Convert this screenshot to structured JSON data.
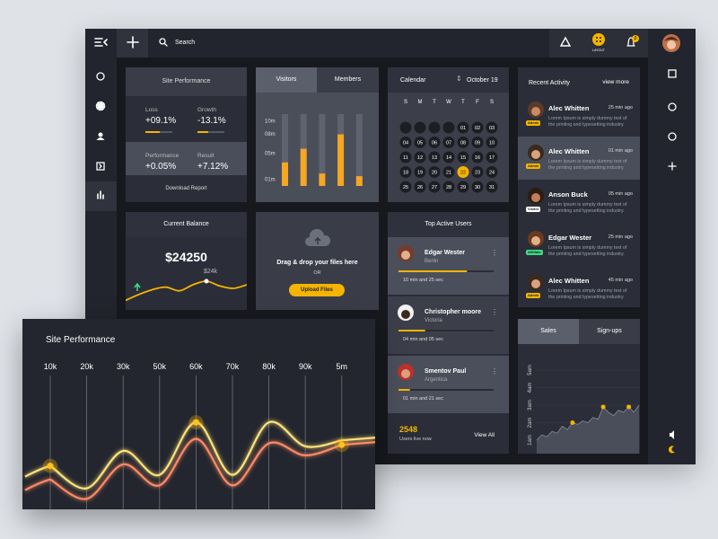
{
  "topbar": {
    "search": "Search",
    "layout_label": "LAYOUT",
    "notification_count": "2"
  },
  "site_performance_card": {
    "title": "Site Performance",
    "stats": [
      {
        "label": "Loss",
        "value": "+09.1%"
      },
      {
        "label": "Growth",
        "value": "-13.1%"
      },
      {
        "label": "Performance",
        "value": "+0.05%"
      },
      {
        "label": "Result",
        "value": "+7.12%"
      }
    ],
    "action": "Download Report"
  },
  "visitors_card": {
    "tabs": [
      "Visitors",
      "Members"
    ],
    "chart_data": {
      "type": "bar",
      "values": [
        3.6,
        5.7,
        1.9,
        7.9,
        1.5
      ],
      "color": "#f5a623",
      "ylim": [
        0,
        11
      ],
      "yticks": [
        {
          "value": 1,
          "label": "01m"
        },
        {
          "value": 5,
          "label": "05m"
        },
        {
          "value": 8,
          "label": "08m"
        },
        {
          "value": 10,
          "label": "10m"
        }
      ]
    }
  },
  "calendar": {
    "title": "Calendar",
    "month": "October 19",
    "weekdays": [
      "S",
      "M",
      "T",
      "W",
      "T",
      "F",
      "S"
    ],
    "days": [
      "01",
      "02",
      "03",
      "04",
      "05",
      "06",
      "07",
      "08",
      "09",
      "10",
      "11",
      "12",
      "13",
      "14",
      "15",
      "16",
      "17",
      "18",
      "19",
      "20",
      "21",
      "22",
      "23",
      "24",
      "25",
      "26",
      "27",
      "28",
      "29",
      "30",
      "31"
    ],
    "selected": "22"
  },
  "current_balance": {
    "title": "Current Balance",
    "amount": "$24250",
    "peak_label": "$24k",
    "chart_data": {
      "type": "line",
      "values": [
        8,
        13,
        17,
        19,
        16,
        21,
        24,
        20,
        18,
        21
      ],
      "color": "#f5b400",
      "ylim": [
        0,
        30
      ]
    }
  },
  "upload": {
    "text": "Drag & drop your files here",
    "separator": "OR",
    "button": "Upload Files"
  },
  "recent_activity": {
    "title": "Recent Activity",
    "link": "view more",
    "items": [
      {
        "name": "Alec Whitten",
        "time": "25 min ago",
        "text": "Lorem Ipsum is simply dummy text of the printing and typesetting industry.",
        "role": "Admin",
        "color": "#f5b400"
      },
      {
        "name": "Alec Whitten",
        "time": "01 min ago",
        "text": "Lorem Ipsum is simply dummy text of the printing and typesetting industry.",
        "role": "Admin",
        "color": "#f5b400"
      },
      {
        "name": "Anson Buck",
        "time": "05 min ago",
        "text": "Lorem Ipsum is simply dummy text of the printing and typesetting industry.",
        "role": "Visitor",
        "color": "#ffffff"
      },
      {
        "name": "Edgar Wester",
        "time": "25 min ago",
        "text": "Lorem Ipsum is simply dummy text of the printing and typesetting industry.",
        "role": "Affiliate",
        "color": "#3ddc84"
      },
      {
        "name": "Alec Whitten",
        "time": "45 min ago",
        "text": "Lorem Ipsum is simply dummy text of the printing and typesetting industry.",
        "role": "Admin",
        "color": "#f5b400"
      }
    ]
  },
  "top_users": {
    "title": "Top Active Users",
    "users": [
      {
        "name": "Edgar Wester",
        "place": "Berlin",
        "duration": "10 min and 25 sec",
        "progress": 72
      },
      {
        "name": "Christopher moore",
        "place": "Victoria",
        "duration": "04 min and 05 sec",
        "progress": 28
      },
      {
        "name": "Smentov Paul",
        "place": "Argentica",
        "duration": "01 min and 21 sec",
        "progress": 12
      }
    ],
    "live_count": "2548",
    "live_label": "Users live now",
    "link": "View All"
  },
  "sales": {
    "tabs": [
      "Sales",
      "Sign-ups"
    ],
    "chart_data": {
      "type": "area",
      "values": [
        1.0,
        1.3,
        1.2,
        1.5,
        1.4,
        1.8,
        1.6,
        2.0,
        1.9,
        2.1,
        2.0,
        2.3,
        2.2,
        2.9,
        2.6,
        2.4,
        2.7,
        2.6,
        2.9,
        2.6,
        3.0
      ],
      "color": "#f5b400",
      "ylim": [
        0.2,
        5.5
      ],
      "yticks": [
        {
          "value": 1,
          "label": "1am"
        },
        {
          "value": 2,
          "label": "2am"
        },
        {
          "value": 3,
          "label": "3am"
        },
        {
          "value": 4,
          "label": "4am"
        },
        {
          "value": 5,
          "label": "5am"
        }
      ]
    }
  },
  "site_performance": {
    "chart_data": {
      "type": "line",
      "title": "Site Performance",
      "categories": [
        "10k",
        "20k",
        "30k",
        "50k",
        "60k",
        "70k",
        "80k",
        "90k",
        "5m"
      ],
      "series": [
        {
          "color": "#ffe27a",
          "values": [
            29,
            14,
            39,
            23,
            58,
            23,
            58,
            42,
            46
          ]
        },
        {
          "color": "#ff8a65",
          "values": [
            20,
            7,
            30,
            16,
            47,
            16,
            44,
            36,
            43
          ]
        }
      ],
      "ylim": [
        0,
        100
      ]
    }
  }
}
